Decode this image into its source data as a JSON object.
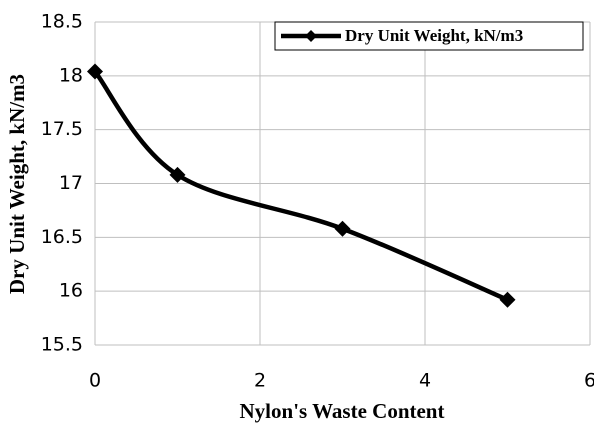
{
  "chart_data": {
    "type": "line",
    "xlabel": "Nylon's Waste Content",
    "ylabel": "Dry Unit Weight, kN/m3",
    "x": [
      0,
      1,
      3,
      5
    ],
    "series": [
      {
        "name": "Dry Unit Weight, kN/m3",
        "color": "#000000",
        "values": [
          18.04,
          17.08,
          16.58,
          15.92
        ]
      }
    ],
    "xlim": [
      0,
      6
    ],
    "xticks": [
      0,
      2,
      4,
      6
    ],
    "ylim": [
      15.5,
      18.5
    ],
    "yticks": [
      15.5,
      16,
      16.5,
      17,
      17.5,
      18,
      18.5
    ],
    "grid": true,
    "legend": "upper right",
    "smooth": true,
    "marker": "diamond"
  }
}
